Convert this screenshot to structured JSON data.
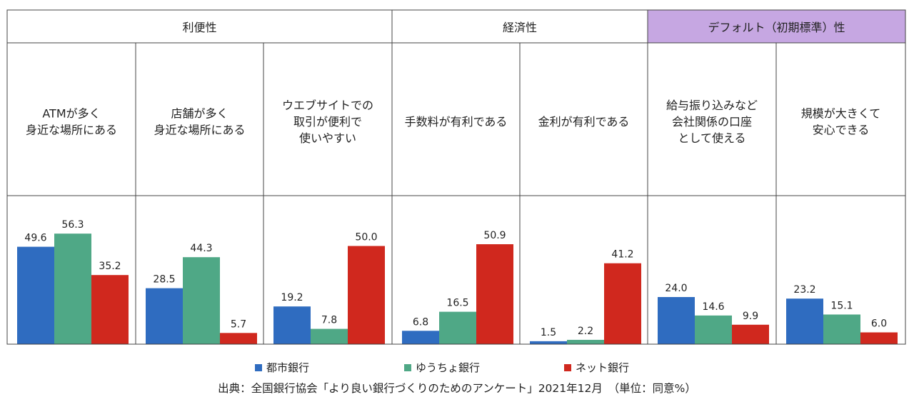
{
  "chart_data": {
    "type": "bar",
    "groups": [
      {
        "name": "利便性",
        "highlight": false
      },
      {
        "name": "経済性",
        "highlight": false
      },
      {
        "name": "デフォルト（初期標準）性",
        "highlight": true
      }
    ],
    "categories": [
      [
        "ATMが多く",
        "身近な場所にある"
      ],
      [
        "店舗が多く",
        "身近な場所にある"
      ],
      [
        "ウエブサイトでの",
        "取引が便利で",
        "使いやすい"
      ],
      [
        "手数料が有利である"
      ],
      [
        "金利が有利である"
      ],
      [
        "給与振り込みなど",
        "会社関係の口座",
        "として使える"
      ],
      [
        "規模が大きくて",
        "安心できる"
      ]
    ],
    "category_group": [
      0,
      0,
      0,
      1,
      1,
      2,
      2
    ],
    "series": [
      {
        "name": "都市銀行",
        "color": "#2f6cc0",
        "values": [
          49.6,
          28.5,
          19.2,
          6.8,
          1.5,
          24.0,
          23.2
        ]
      },
      {
        "name": "ゆうちょ銀行",
        "color": "#4fa886",
        "values": [
          56.3,
          44.3,
          7.8,
          16.5,
          2.2,
          14.6,
          15.1
        ]
      },
      {
        "name": "ネット銀行",
        "color": "#d0281e",
        "values": [
          35.2,
          5.7,
          50.0,
          50.9,
          41.2,
          9.9,
          6.0
        ]
      }
    ],
    "ylim": [
      0,
      60
    ],
    "grid": false,
    "legend": "bottom",
    "highlight_color": "#c6a7e2"
  },
  "source_note": "出典：全国銀行協会「より良い銀行づくりのためのアンケート」2021年12月　（単位：同意%）"
}
